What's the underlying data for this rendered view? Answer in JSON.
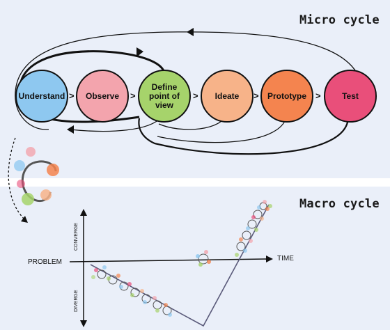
{
  "micro": {
    "title": "Micro cycle",
    "stages": [
      {
        "id": "understand",
        "label": "Understand",
        "color": "#8ec8f0"
      },
      {
        "id": "observe",
        "label": "Observe",
        "color": "#f3a4ad"
      },
      {
        "id": "define",
        "label": "Define point of view",
        "color": "#a6d36b"
      },
      {
        "id": "ideate",
        "label": "Ideate",
        "color": "#f7b389"
      },
      {
        "id": "prototype",
        "label": "Prototype",
        "color": "#f4844f"
      },
      {
        "id": "test",
        "label": "Test",
        "color": "#e94f7a"
      }
    ],
    "arrow_glyph": ">"
  },
  "macro": {
    "title": "Macro cycle",
    "axis": {
      "x_label": "TIME",
      "y_label": "PROBLEM",
      "top_label": "CONVERGE",
      "bottom_label": "DIVERGE"
    }
  },
  "colors": {
    "background_panel": "#eaeff9",
    "ink": "#111111",
    "curve": "#5a5a7a"
  }
}
